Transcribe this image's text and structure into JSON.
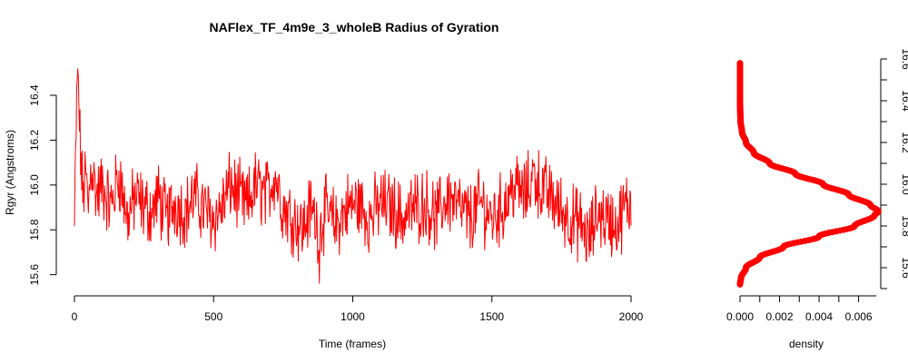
{
  "chart_data": [
    {
      "type": "line",
      "title": "NAFlex_TF_4m9e_3_wholeB Radius of Gyration",
      "xlabel": "Time (frames)",
      "ylabel": "Rgyr (Angstroms)",
      "xlim": [
        0,
        2000
      ],
      "ylim": [
        15.55,
        16.55
      ],
      "x_ticks": [
        "0",
        "500",
        "1000",
        "1500",
        "2000"
      ],
      "y_ticks": [
        "15.6",
        "15.8",
        "16.0",
        "16.2",
        "16.4"
      ],
      "color": "#ff0000",
      "grid": false,
      "series": [
        {
          "x": [
            0,
            6,
            12,
            20,
            30,
            40,
            50,
            60,
            80,
            100,
            130,
            160,
            190,
            220,
            250,
            280,
            300,
            330,
            360,
            400,
            430,
            460,
            500,
            530,
            560,
            590,
            620,
            650,
            690,
            720,
            750,
            790,
            820,
            850,
            880,
            900,
            940,
            980,
            1020,
            1060,
            1100,
            1140,
            1180,
            1220,
            1260,
            1300,
            1340,
            1380,
            1420,
            1460,
            1500,
            1540,
            1580,
            1620,
            1650,
            1680,
            1710,
            1740,
            1780,
            1820,
            1850,
            1880,
            1910,
            1950,
            1980,
            2000
          ],
          "y": [
            15.8,
            16.25,
            16.52,
            16.2,
            15.95,
            16.05,
            15.9,
            16.1,
            15.95,
            16.0,
            15.9,
            16.05,
            15.85,
            15.95,
            15.9,
            15.88,
            15.95,
            15.85,
            15.92,
            15.88,
            15.95,
            15.9,
            15.85,
            15.9,
            16.0,
            15.95,
            15.9,
            16.0,
            15.95,
            16.05,
            15.9,
            15.85,
            15.8,
            15.9,
            15.8,
            15.88,
            15.82,
            15.9,
            15.92,
            15.85,
            15.92,
            15.9,
            15.85,
            15.9,
            15.92,
            15.85,
            15.95,
            15.9,
            15.85,
            15.92,
            15.85,
            15.9,
            16.0,
            15.95,
            16.05,
            15.98,
            15.95,
            15.9,
            15.85,
            15.82,
            15.75,
            15.88,
            15.85,
            15.82,
            15.9,
            15.92
          ]
        }
      ],
      "extremes": {
        "max": {
          "x": 12,
          "y": 16.52
        },
        "min": {
          "x": 880,
          "y": 15.56
        }
      }
    },
    {
      "type": "line",
      "xlabel": "density",
      "ylabel": "",
      "xlim": [
        0,
        0.0068
      ],
      "ylim": [
        15.5,
        16.6
      ],
      "x_ticks": [
        "0.000",
        "0.002",
        "0.004",
        "0.006"
      ],
      "y_ticks": [
        "15.6",
        "15.8",
        "16.0",
        "16.2",
        "16.4",
        "16.6"
      ],
      "color": "#ff0000",
      "orientation": "vertical",
      "series": [
        {
          "y": [
            15.52,
            15.55,
            15.6,
            15.65,
            15.7,
            15.75,
            15.8,
            15.85,
            15.87,
            15.9,
            15.95,
            16.0,
            16.05,
            16.1,
            16.15,
            16.2,
            16.25,
            16.3,
            16.35,
            16.4,
            16.5,
            16.58
          ],
          "density": [
            0.0,
            5e-05,
            0.0003,
            0.001,
            0.0022,
            0.004,
            0.0058,
            0.0068,
            0.007,
            0.0066,
            0.0055,
            0.0042,
            0.0028,
            0.0015,
            0.0007,
            0.0003,
            0.0001,
            3e-05,
            1e-05,
            0.0,
            0.0,
            0.0
          ]
        }
      ]
    }
  ]
}
